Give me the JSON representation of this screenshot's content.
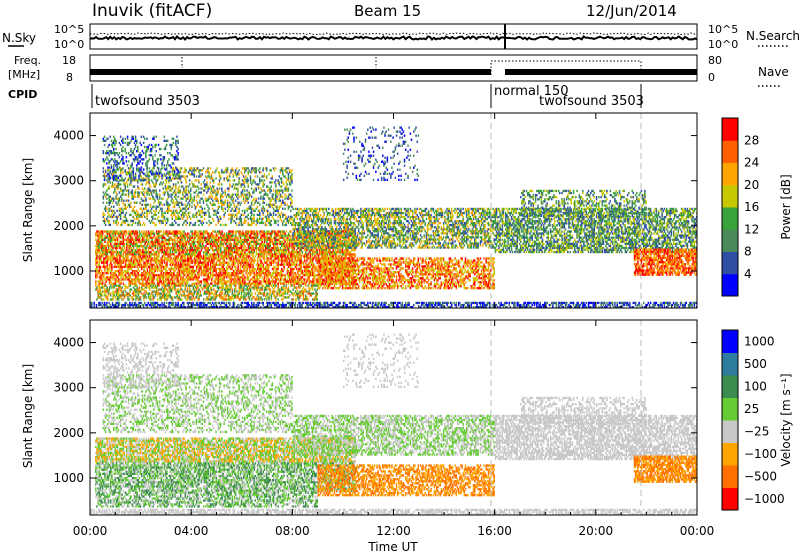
{
  "header": {
    "station": "Inuvik (fitACF)",
    "beam": "Beam 15",
    "date": "12/Jun/2014"
  },
  "nsky_panel": {
    "left_label": "N.Sky",
    "right_label": "N.Search",
    "left_ticks": [
      "10^5",
      "10^0"
    ],
    "right_ticks": [
      "10^5",
      "10^0"
    ]
  },
  "freq_panel": {
    "left_label_1": "Freq.",
    "left_label_2": "[MHz]",
    "right_label": "Nave",
    "left_ticks": [
      "18",
      "8"
    ],
    "right_ticks": [
      "80",
      "0"
    ]
  },
  "cpid": {
    "label": "CPID",
    "segments": [
      "twofsound 3503",
      "normal 150",
      "twofsound 3503"
    ]
  },
  "colors": {
    "power_scale": [
      "#0000ff",
      "#2e4fa3",
      "#4a8a5a",
      "#3aa23a",
      "#c8c800",
      "#ffa500",
      "#ff6000",
      "#ff0000"
    ],
    "velocity_scale": [
      "#0000ff",
      "#2e7d9e",
      "#3c8c50",
      "#66cc33",
      "#c8c8c8",
      "#ffa500",
      "#ff7000",
      "#ff0000"
    ],
    "ground_scatter": "#7a7a7a"
  },
  "chart_data": [
    {
      "type": "heatmap",
      "name": "power",
      "ylabel": "Slant Range [km]",
      "yticks": [
        "1000",
        "2000",
        "3000",
        "4000"
      ],
      "colorbar_label": "Power [dB]",
      "colorbar_ticks": [
        "4",
        "8",
        "12",
        "16",
        "20",
        "24",
        "28"
      ],
      "ylim": [
        180,
        4500
      ]
    },
    {
      "type": "heatmap",
      "name": "velocity",
      "ylabel": "Slant Range [km]",
      "yticks": [
        "1000",
        "2000",
        "3000",
        "4000"
      ],
      "colorbar_label": "Velocity [m s⁻¹]",
      "colorbar_ticks": [
        "1000",
        "500",
        "100",
        "25",
        "−25",
        "−100",
        "−500",
        "−1000"
      ],
      "ylim": [
        180,
        4500
      ]
    }
  ],
  "time_axis": {
    "label": "Time UT",
    "ticks": [
      "00:00",
      "04:00",
      "08:00",
      "12:00",
      "16:00",
      "20:00",
      "00:00"
    ]
  },
  "mode_changes_ut_hours": [
    16.0,
    22.0
  ]
}
